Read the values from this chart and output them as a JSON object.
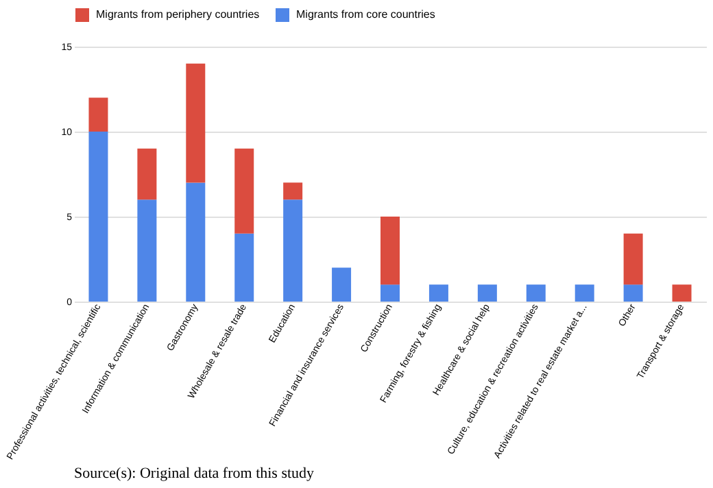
{
  "chart_data": {
    "type": "bar",
    "stacked": true,
    "categories": [
      "Professional activities, technical, scientific",
      "Information & communication",
      "Gastronomy",
      "Wholesale & resale trade",
      "Education",
      "Financial and insurance services",
      "Construction",
      "Farming, forestry & fishing",
      "Healthcare & social help",
      "Culture, education & recreation activities",
      "Activities related to real estate market a...",
      "Other",
      "Transport & storage"
    ],
    "series": [
      {
        "name": "Migrants from core countries",
        "color": "#4f86e8",
        "values": [
          10,
          6,
          7,
          4,
          6,
          2,
          1,
          1,
          1,
          1,
          1,
          1,
          0
        ]
      },
      {
        "name": "Migrants from periphery countries",
        "color": "#db4c3f",
        "values": [
          2,
          3,
          7,
          5,
          1,
          0,
          4,
          0,
          0,
          0,
          0,
          3,
          1
        ]
      }
    ],
    "ylim": [
      0,
      15
    ],
    "yticks": [
      0,
      5,
      10,
      15
    ],
    "grid": "y",
    "legend": "top",
    "annotations": [
      "Source(s): Original data from this study"
    ]
  }
}
